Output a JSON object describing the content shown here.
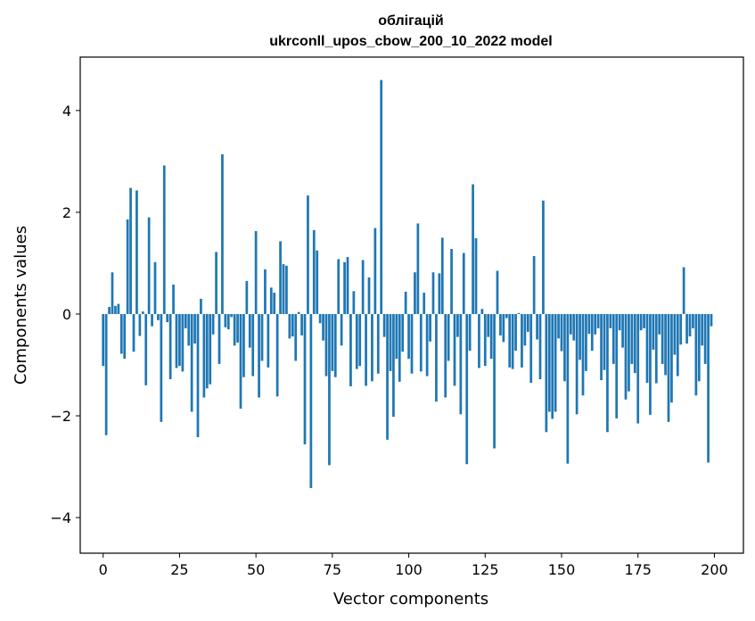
{
  "chart_data": {
    "type": "bar",
    "title": "облігацій",
    "subtitle": "ukrconll_upos_cbow_200_10_2022 model",
    "xlabel": "Vector components",
    "ylabel": "Components values",
    "xlim": [
      -7.5,
      209.5
    ],
    "ylim": [
      -4.7,
      5.05
    ],
    "xticks": [
      0,
      25,
      50,
      75,
      100,
      125,
      150,
      175,
      200
    ],
    "yticks": [
      -4,
      -2,
      0,
      2,
      4
    ],
    "ytick_labels": [
      "−4",
      "−2",
      "0",
      "2",
      "4"
    ],
    "grid": false,
    "bar_color": "#1f77b4",
    "x": [
      0,
      1,
      2,
      3,
      4,
      5,
      6,
      7,
      8,
      9,
      10,
      11,
      12,
      13,
      14,
      15,
      16,
      17,
      18,
      19,
      20,
      21,
      22,
      23,
      24,
      25,
      26,
      27,
      28,
      29,
      30,
      31,
      32,
      33,
      34,
      35,
      36,
      37,
      38,
      39,
      40,
      41,
      42,
      43,
      44,
      45,
      46,
      47,
      48,
      49,
      50,
      51,
      52,
      53,
      54,
      55,
      56,
      57,
      58,
      59,
      60,
      61,
      62,
      63,
      64,
      65,
      66,
      67,
      68,
      69,
      70,
      71,
      72,
      73,
      74,
      75,
      76,
      77,
      78,
      79,
      80,
      81,
      82,
      83,
      84,
      85,
      86,
      87,
      88,
      89,
      90,
      91,
      92,
      93,
      94,
      95,
      96,
      97,
      98,
      99,
      100,
      101,
      102,
      103,
      104,
      105,
      106,
      107,
      108,
      109,
      110,
      111,
      112,
      113,
      114,
      115,
      116,
      117,
      118,
      119,
      120,
      121,
      122,
      123,
      124,
      125,
      126,
      127,
      128,
      129,
      130,
      131,
      132,
      133,
      134,
      135,
      136,
      137,
      138,
      139,
      140,
      141,
      142,
      143,
      144,
      145,
      146,
      147,
      148,
      149,
      150,
      151,
      152,
      153,
      154,
      155,
      156,
      157,
      158,
      159,
      160,
      161,
      162,
      163,
      164,
      165,
      166,
      167,
      168,
      169,
      170,
      171,
      172,
      173,
      174,
      175,
      176,
      177,
      178,
      179,
      180,
      181,
      182,
      183,
      184,
      185,
      186,
      187,
      188,
      189,
      190,
      191,
      192,
      193,
      194,
      195,
      196,
      197,
      198,
      199
    ],
    "values": [
      -1.02,
      -2.38,
      0.14,
      0.82,
      0.16,
      0.2,
      -0.78,
      -0.88,
      1.86,
      2.48,
      -0.74,
      2.43,
      -0.43,
      0.05,
      -1.4,
      1.9,
      -0.24,
      1.02,
      -0.12,
      -2.12,
      2.92,
      -0.16,
      -1.28,
      0.58,
      -1.06,
      -1.02,
      -1.13,
      -0.28,
      -0.62,
      -1.92,
      -0.58,
      -2.42,
      0.3,
      -1.64,
      -1.46,
      -1.38,
      -0.4,
      1.22,
      -0.98,
      3.14,
      -0.26,
      -0.3,
      -0.06,
      -0.62,
      -0.56,
      -1.86,
      -1.24,
      0.65,
      -0.66,
      -1.22,
      1.63,
      -1.64,
      -0.92,
      0.88,
      -1.05,
      0.52,
      0.42,
      -1.62,
      1.43,
      0.98,
      0.95,
      -0.48,
      -0.44,
      -0.92,
      0.04,
      -0.42,
      -2.56,
      2.33,
      -3.42,
      1.65,
      1.25,
      -0.18,
      -0.52,
      -1.22,
      -2.97,
      -1.12,
      -1.24,
      1.08,
      -0.62,
      1.02,
      1.12,
      -1.42,
      0.45,
      -1.08,
      -1.02,
      1.06,
      -1.41,
      0.72,
      -1.32,
      1.69,
      -1.17,
      4.6,
      -0.45,
      -2.47,
      -1.12,
      -2.02,
      -0.88,
      -1.33,
      -0.74,
      0.44,
      -0.88,
      -1.17,
      0.82,
      1.78,
      -1.13,
      0.42,
      -1.22,
      -0.54,
      0.82,
      -1.72,
      0.8,
      1.5,
      -1.64,
      -0.92,
      1.28,
      -1.41,
      -0.45,
      -1.97,
      1.2,
      -2.95,
      -0.72,
      2.55,
      1.49,
      -1.06,
      0.1,
      -1.02,
      -0.45,
      -0.88,
      -2.64,
      0.85,
      -0.42,
      -0.55,
      -0.08,
      -1.05,
      -1.08,
      -0.72,
      0.02,
      -1.05,
      -0.62,
      -0.35,
      -1.35,
      1.14,
      -0.5,
      -1.28,
      2.23,
      -2.32,
      -1.92,
      -2.06,
      -1.92,
      -0.48,
      -0.73,
      -1.32,
      -2.94,
      -0.4,
      -0.52,
      -1.97,
      -0.9,
      -1.6,
      -1.12,
      -0.39,
      -0.72,
      -0.4,
      -0.28,
      -1.3,
      -1.1,
      -2.32,
      -0.28,
      -0.98,
      -2.05,
      -0.32,
      -0.66,
      -1.68,
      -1.52,
      -0.98,
      -1.16,
      -2.15,
      -0.32,
      -0.28,
      -1.35,
      -1.98,
      -0.7,
      -1.36,
      -0.4,
      -0.98,
      -1.2,
      -2.12,
      -1.74,
      -0.8,
      -1.22,
      -0.6,
      0.92,
      -0.58,
      -0.44,
      -0.28,
      -1.6,
      -1.32,
      -0.62,
      -0.98,
      -2.92,
      -0.24
    ]
  }
}
